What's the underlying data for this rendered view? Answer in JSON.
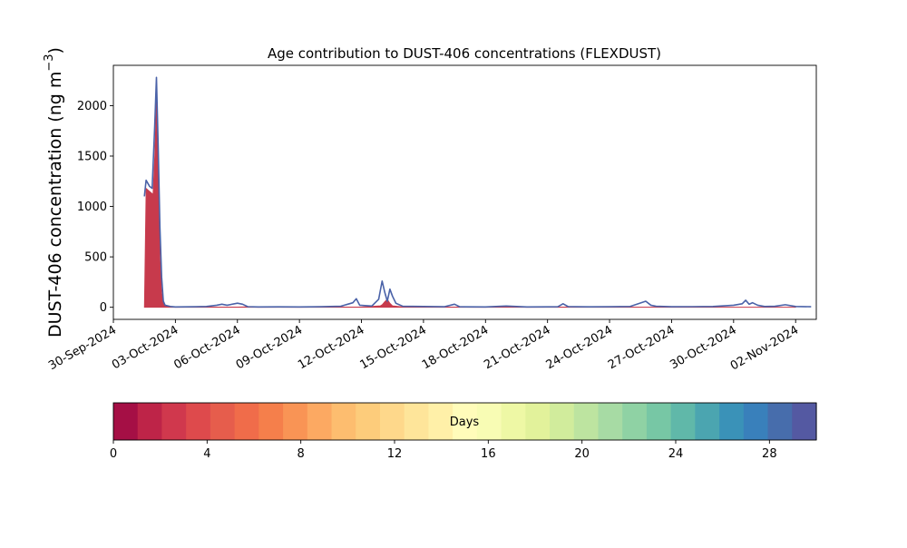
{
  "chart_data": {
    "type": "area",
    "title": "Age contribution to DUST-406 concentrations (FLEXDUST)",
    "ylabel_main": "DUST-406 concentration (ng m",
    "ylabel_sup": "−3",
    "ylabel_end": ")",
    "xlabel": "",
    "xlim": [
      "2024-09-30",
      "2024-11-03"
    ],
    "ylim": [
      -120,
      2400
    ],
    "y_ticks": [
      0,
      500,
      1000,
      1500,
      2000
    ],
    "y_tick_labels": [
      "0",
      "500",
      "1000",
      "1500",
      "2000"
    ],
    "x_ticks": [
      "2024-09-30",
      "2024-10-03",
      "2024-10-06",
      "2024-10-09",
      "2024-10-12",
      "2024-10-15",
      "2024-10-18",
      "2024-10-21",
      "2024-10-24",
      "2024-10-27",
      "2024-10-30",
      "2024-11-02"
    ],
    "x_tick_labels": [
      "30-Sep-2024",
      "03-Oct-2024",
      "06-Oct-2024",
      "09-Oct-2024",
      "12-Oct-2024",
      "15-Oct-2024",
      "18-Oct-2024",
      "21-Oct-2024",
      "24-Oct-2024",
      "27-Oct-2024",
      "30-Oct-2024",
      "02-Nov-2024"
    ],
    "grid": false,
    "legend": "none",
    "total_line_color": "#4a62a8",
    "series": [
      {
        "color": "#c73a4c",
        "x": [
          "2024-10-01T12:00",
          "2024-10-01T14:00",
          "2024-10-01T18:00",
          "2024-10-01T22:00",
          "2024-10-02T00:00",
          "2024-10-02T02:00",
          "2024-10-02T04:00",
          "2024-10-02T06:00",
          "2024-10-02T08:00",
          "2024-10-02T10:00",
          "2024-10-02T12:00",
          "2024-10-02T18:00",
          "2024-10-03T00:00",
          "2024-10-06T00:00",
          "2024-10-06T12:00",
          "2024-10-12T00:00",
          "2024-10-12T22:00",
          "2024-10-13T00:00",
          "2024-10-13T03:00",
          "2024-10-13T06:00",
          "2024-10-13T09:00",
          "2024-10-13T12:00",
          "2024-10-14T00:00",
          "2024-11-02T00:00"
        ],
        "y": [
          0,
          1180,
          1150,
          1120,
          1500,
          2050,
          1400,
          500,
          150,
          40,
          10,
          5,
          2,
          2,
          5,
          2,
          15,
          25,
          55,
          80,
          40,
          15,
          3,
          1
        ]
      },
      {
        "color": "#4a62a8",
        "x": [
          "2024-10-01T12:00",
          "2024-10-01T14:00",
          "2024-10-01T18:00",
          "2024-10-01T21:00",
          "2024-10-02T00:00",
          "2024-10-02T02:00",
          "2024-10-02T04:00",
          "2024-10-02T06:00",
          "2024-10-02T08:00",
          "2024-10-02T10:00",
          "2024-10-02T12:00",
          "2024-10-02T18:00",
          "2024-10-03T00:00",
          "2024-10-04T00:00",
          "2024-10-04T12:00",
          "2024-10-05T00:00",
          "2024-10-05T06:00",
          "2024-10-05T12:00",
          "2024-10-06T00:00",
          "2024-10-06T06:00",
          "2024-10-06T12:00",
          "2024-10-07T00:00",
          "2024-10-08T00:00",
          "2024-10-09T00:00",
          "2024-10-10T00:00",
          "2024-10-11T00:00",
          "2024-10-11T14:00",
          "2024-10-11T18:00",
          "2024-10-11T22:00",
          "2024-10-12T12:00",
          "2024-10-12T20:00",
          "2024-10-13T00:00",
          "2024-10-13T03:00",
          "2024-10-13T06:00",
          "2024-10-13T09:00",
          "2024-10-13T12:00",
          "2024-10-13T16:00",
          "2024-10-14T00:00",
          "2024-10-15T00:00",
          "2024-10-16T00:00",
          "2024-10-16T12:00",
          "2024-10-16T18:00",
          "2024-10-17T00:00",
          "2024-10-18T00:00",
          "2024-10-19T00:00",
          "2024-10-19T12:00",
          "2024-10-20T00:00",
          "2024-10-21T00:00",
          "2024-10-21T12:00",
          "2024-10-21T18:00",
          "2024-10-22T00:00",
          "2024-10-23T00:00",
          "2024-10-24T00:00",
          "2024-10-25T00:00",
          "2024-10-25T18:00",
          "2024-10-26T00:00",
          "2024-10-26T06:00",
          "2024-10-27T00:00",
          "2024-10-28T00:00",
          "2024-10-29T00:00",
          "2024-10-30T00:00",
          "2024-10-30T10:00",
          "2024-10-30T14:00",
          "2024-10-30T18:00",
          "2024-10-30T22:00",
          "2024-10-31T04:00",
          "2024-10-31T12:00",
          "2024-11-01T00:00",
          "2024-11-01T12:00",
          "2024-11-02T00:00",
          "2024-11-02T18:00"
        ],
        "y": [
          1100,
          1260,
          1200,
          1180,
          1800,
          2280,
          1600,
          800,
          300,
          60,
          20,
          8,
          3,
          5,
          8,
          20,
          30,
          20,
          40,
          30,
          6,
          3,
          4,
          3,
          5,
          10,
          45,
          85,
          20,
          12,
          80,
          260,
          150,
          60,
          180,
          110,
          40,
          10,
          8,
          5,
          30,
          5,
          4,
          3,
          12,
          8,
          3,
          4,
          5,
          35,
          6,
          4,
          5,
          8,
          60,
          20,
          10,
          5,
          6,
          8,
          20,
          35,
          70,
          30,
          45,
          20,
          8,
          10,
          25,
          8,
          5
        ]
      }
    ]
  },
  "colorbar": {
    "label": "Days",
    "ticks": [
      0,
      4,
      8,
      12,
      16,
      20,
      24,
      28
    ],
    "tick_labels": [
      "0",
      "4",
      "8",
      "12",
      "16",
      "20",
      "24",
      "28"
    ],
    "range": [
      0,
      30
    ],
    "colors": [
      "#a50f45",
      "#be2448",
      "#d0384d",
      "#de4a4c",
      "#e65d4c",
      "#f06c4a",
      "#f57f4b",
      "#f99455",
      "#fca962",
      "#fdbd6f",
      "#fdcc7b",
      "#fed88b",
      "#fee59a",
      "#fff0a8",
      "#fffcba",
      "#f8fcb4",
      "#eef8a5",
      "#e2f29b",
      "#d1ec9c",
      "#bde4a0",
      "#a7dba4",
      "#8fd2a4",
      "#77c7a5",
      "#60b8a9",
      "#4ba5b0",
      "#3a92b8",
      "#3980bb",
      "#476dac",
      "#5459a2"
    ]
  }
}
